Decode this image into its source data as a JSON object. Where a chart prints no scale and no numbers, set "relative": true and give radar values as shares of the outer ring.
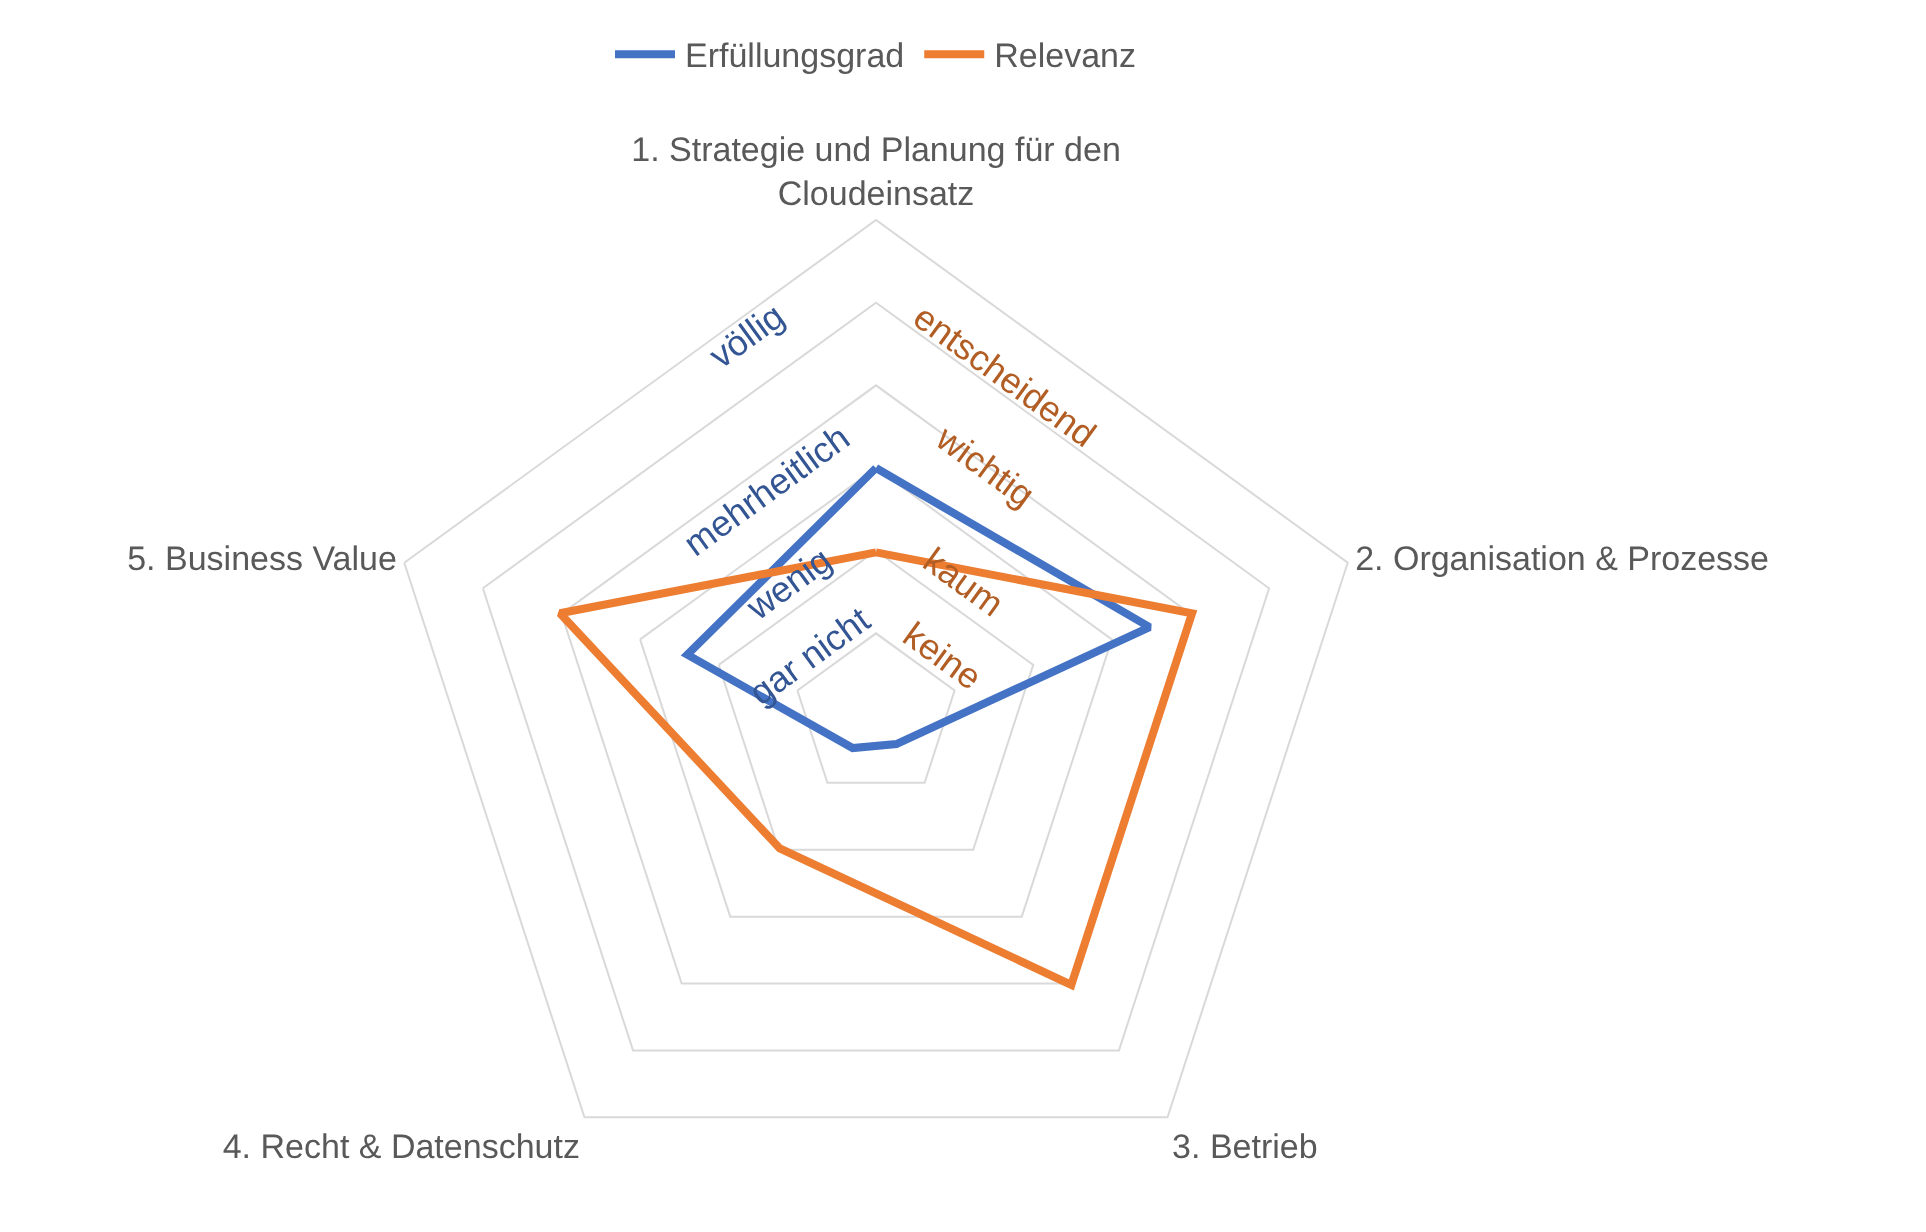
{
  "chart_data": {
    "type": "radar",
    "relative": true,
    "categories": [
      "1. Strategie und Planung für den Cloudeinsatz",
      "2. Organisation & Prozesse",
      "3. Betrieb",
      "4. Recht & Datenschutz",
      "5. Business Value"
    ],
    "series": [
      {
        "name": "Erfüllungsgrad",
        "color": "#4472c4",
        "values": [
          0.5,
          0.58,
          0.07,
          0.08,
          0.4
        ]
      },
      {
        "name": "Relevanz",
        "color": "#ed7d31",
        "values": [
          0.33,
          0.67,
          0.67,
          0.33,
          0.67
        ]
      }
    ],
    "annotations": [
      "gar nicht",
      "wenig",
      "mehrheitlich",
      "völlig",
      "keine",
      "kaum",
      "wichtig",
      "entscheidend"
    ],
    "grid": true,
    "legend": "top",
    "marker": "none",
    "line_style": "solid"
  }
}
